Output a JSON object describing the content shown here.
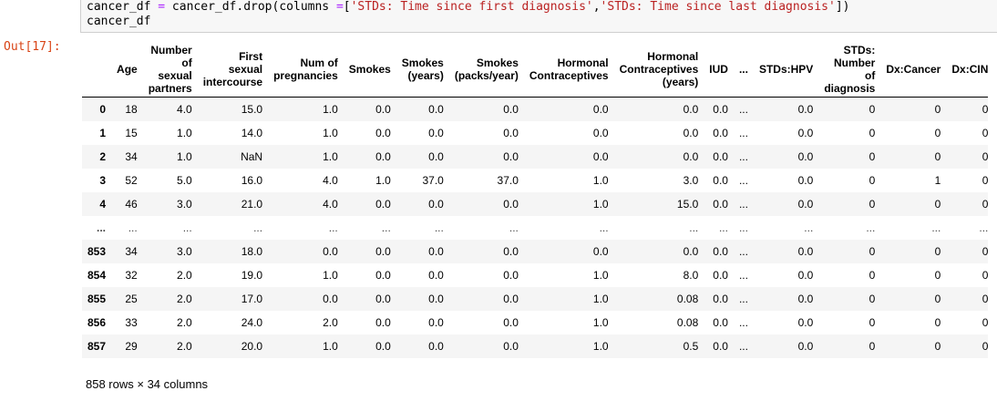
{
  "code": {
    "line1_prefix": "cancer_df ",
    "line1_eq": "=",
    "line1_mid": " cancer_df.drop(columns ",
    "line1_eq2": "=",
    "line1_open": "[",
    "line1_str1": "'STDs: Time since first diagnosis'",
    "line1_comma": ",",
    "line1_str2": "'STDs: Time since last diagnosis'",
    "line1_close": "])",
    "line2": "cancer_df"
  },
  "output": {
    "prompt": "Out[17]:",
    "footer": "858 rows × 34 columns"
  },
  "table": {
    "columns": [
      "Age",
      "Number of sexual partners",
      "First sexual intercourse",
      "Num of pregnancies",
      "Smokes",
      "Smokes (years)",
      "Smokes (packs/year)",
      "Hormonal Contraceptives",
      "Hormonal Contraceptives (years)",
      "IUD",
      "...",
      "STDs:HPV",
      "STDs: Number of diagnosis",
      "Dx:Cancer",
      "Dx:CIN"
    ],
    "rows": [
      {
        "index": "0",
        "cells": [
          "18",
          "4.0",
          "15.0",
          "1.0",
          "0.0",
          "0.0",
          "0.0",
          "0.0",
          "0.0",
          "0.0",
          "...",
          "0.0",
          "0",
          "0",
          "0"
        ]
      },
      {
        "index": "1",
        "cells": [
          "15",
          "1.0",
          "14.0",
          "1.0",
          "0.0",
          "0.0",
          "0.0",
          "0.0",
          "0.0",
          "0.0",
          "...",
          "0.0",
          "0",
          "0",
          "0"
        ]
      },
      {
        "index": "2",
        "cells": [
          "34",
          "1.0",
          "NaN",
          "1.0",
          "0.0",
          "0.0",
          "0.0",
          "0.0",
          "0.0",
          "0.0",
          "...",
          "0.0",
          "0",
          "0",
          "0"
        ]
      },
      {
        "index": "3",
        "cells": [
          "52",
          "5.0",
          "16.0",
          "4.0",
          "1.0",
          "37.0",
          "37.0",
          "1.0",
          "3.0",
          "0.0",
          "...",
          "0.0",
          "0",
          "1",
          "0"
        ]
      },
      {
        "index": "4",
        "cells": [
          "46",
          "3.0",
          "21.0",
          "4.0",
          "0.0",
          "0.0",
          "0.0",
          "1.0",
          "15.0",
          "0.0",
          "...",
          "0.0",
          "0",
          "0",
          "0"
        ]
      },
      {
        "index": "...",
        "cells": [
          "...",
          "...",
          "...",
          "...",
          "...",
          "...",
          "...",
          "...",
          "...",
          "...",
          "...",
          "...",
          "...",
          "...",
          "..."
        ]
      },
      {
        "index": "853",
        "cells": [
          "34",
          "3.0",
          "18.0",
          "0.0",
          "0.0",
          "0.0",
          "0.0",
          "0.0",
          "0.0",
          "0.0",
          "...",
          "0.0",
          "0",
          "0",
          "0"
        ]
      },
      {
        "index": "854",
        "cells": [
          "32",
          "2.0",
          "19.0",
          "1.0",
          "0.0",
          "0.0",
          "0.0",
          "1.0",
          "8.0",
          "0.0",
          "...",
          "0.0",
          "0",
          "0",
          "0"
        ]
      },
      {
        "index": "855",
        "cells": [
          "25",
          "2.0",
          "17.0",
          "0.0",
          "0.0",
          "0.0",
          "0.0",
          "1.0",
          "0.08",
          "0.0",
          "...",
          "0.0",
          "0",
          "0",
          "0"
        ]
      },
      {
        "index": "856",
        "cells": [
          "33",
          "2.0",
          "24.0",
          "2.0",
          "0.0",
          "0.0",
          "0.0",
          "1.0",
          "0.08",
          "0.0",
          "...",
          "0.0",
          "0",
          "0",
          "0"
        ]
      },
      {
        "index": "857",
        "cells": [
          "29",
          "2.0",
          "20.0",
          "1.0",
          "0.0",
          "0.0",
          "0.0",
          "1.0",
          "0.5",
          "0.0",
          "...",
          "0.0",
          "0",
          "0",
          "0"
        ]
      }
    ]
  },
  "colors": {
    "prompt": "#d84315",
    "string": "#ba2121",
    "operator": "#aa22ff"
  }
}
